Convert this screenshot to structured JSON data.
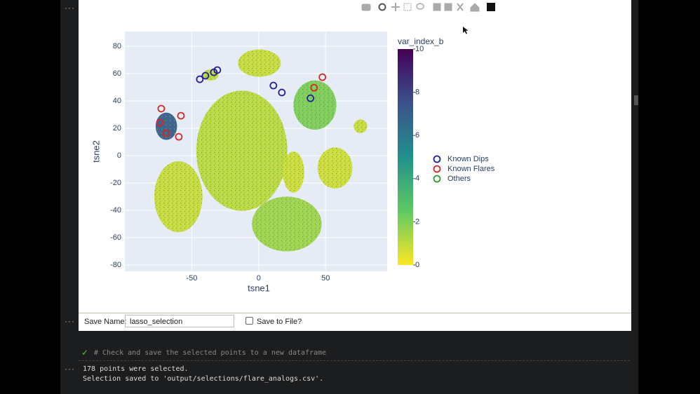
{
  "collapse_marker": "···",
  "chart_data": {
    "type": "scatter",
    "xlabel": "tsne1",
    "ylabel": "tsne2",
    "xlim": [
      -100,
      96
    ],
    "ylim": [
      -84.6,
      90.8
    ],
    "xticks": [
      -50,
      0,
      50
    ],
    "yticks": [
      -80,
      -60,
      -40,
      -20,
      0,
      20,
      40,
      60,
      80
    ],
    "grid": true,
    "legend": "right",
    "colorbar": {
      "title": "var_index_b",
      "lim": [
        0,
        10
      ],
      "ticks": [
        0,
        2,
        4,
        6,
        8,
        10
      ],
      "colorscale": [
        "#fde725",
        "#5ec962",
        "#21918c",
        "#3b528b",
        "#440154"
      ]
    },
    "regions": [
      {
        "x": -12.6,
        "y": 3.6,
        "rx": 34,
        "ry": 44,
        "value": 1
      },
      {
        "x": 0.5,
        "y": 67.7,
        "rx": 16,
        "ry": 10,
        "value": 0.8
      },
      {
        "x": -60,
        "y": -30,
        "rx": 18,
        "ry": 26,
        "value": 0.8
      },
      {
        "x": 21,
        "y": -50,
        "rx": 26,
        "ry": 20,
        "value": 1.5
      },
      {
        "x": 42,
        "y": 37,
        "rx": 16,
        "ry": 18,
        "value": 2
      },
      {
        "x": 57,
        "y": -9,
        "rx": 13,
        "ry": 15,
        "value": 0.7
      },
      {
        "x": 26,
        "y": -12,
        "rx": 8,
        "ry": 15,
        "value": 0.7
      },
      {
        "x": -69,
        "y": 21.5,
        "rx": 8,
        "ry": 10,
        "value": 7
      },
      {
        "x": -36,
        "y": 59,
        "rx": 6,
        "ry": 4,
        "value": 1
      },
      {
        "x": 76,
        "y": 21.5,
        "rx": 5,
        "ry": 5,
        "value": 0.8
      }
    ],
    "series": [
      {
        "name": "Known Dips",
        "color": "#1f1f9a",
        "x": [
          -44,
          -39.8,
          -33.5,
          -30.9,
          11,
          17.3,
          38.7
        ],
        "y": [
          55.9,
          58.5,
          61,
          62.6,
          51.3,
          46.2,
          42
        ]
      },
      {
        "name": "Known Flares",
        "color": "#d62728",
        "x": [
          -72.8,
          -73.8,
          -69.1,
          -59.7,
          47.6,
          41.4,
          -58.1
        ],
        "y": [
          34.4,
          24.1,
          16.4,
          13.8,
          57.4,
          49.7,
          29.2
        ]
      },
      {
        "name": "Others",
        "color": "#2ca02c",
        "x": [],
        "y": []
      }
    ]
  },
  "widget": {
    "label": "Save Name:",
    "input": "lasso_selection",
    "checkbox": "Save to File?"
  },
  "cell": {
    "check": "✓",
    "code": "# Check and save the selected points to a new dataframe",
    "outputs": [
      "178 points were selected.",
      "Selection saved to 'output/selections/flare_analogs.csv'."
    ]
  }
}
